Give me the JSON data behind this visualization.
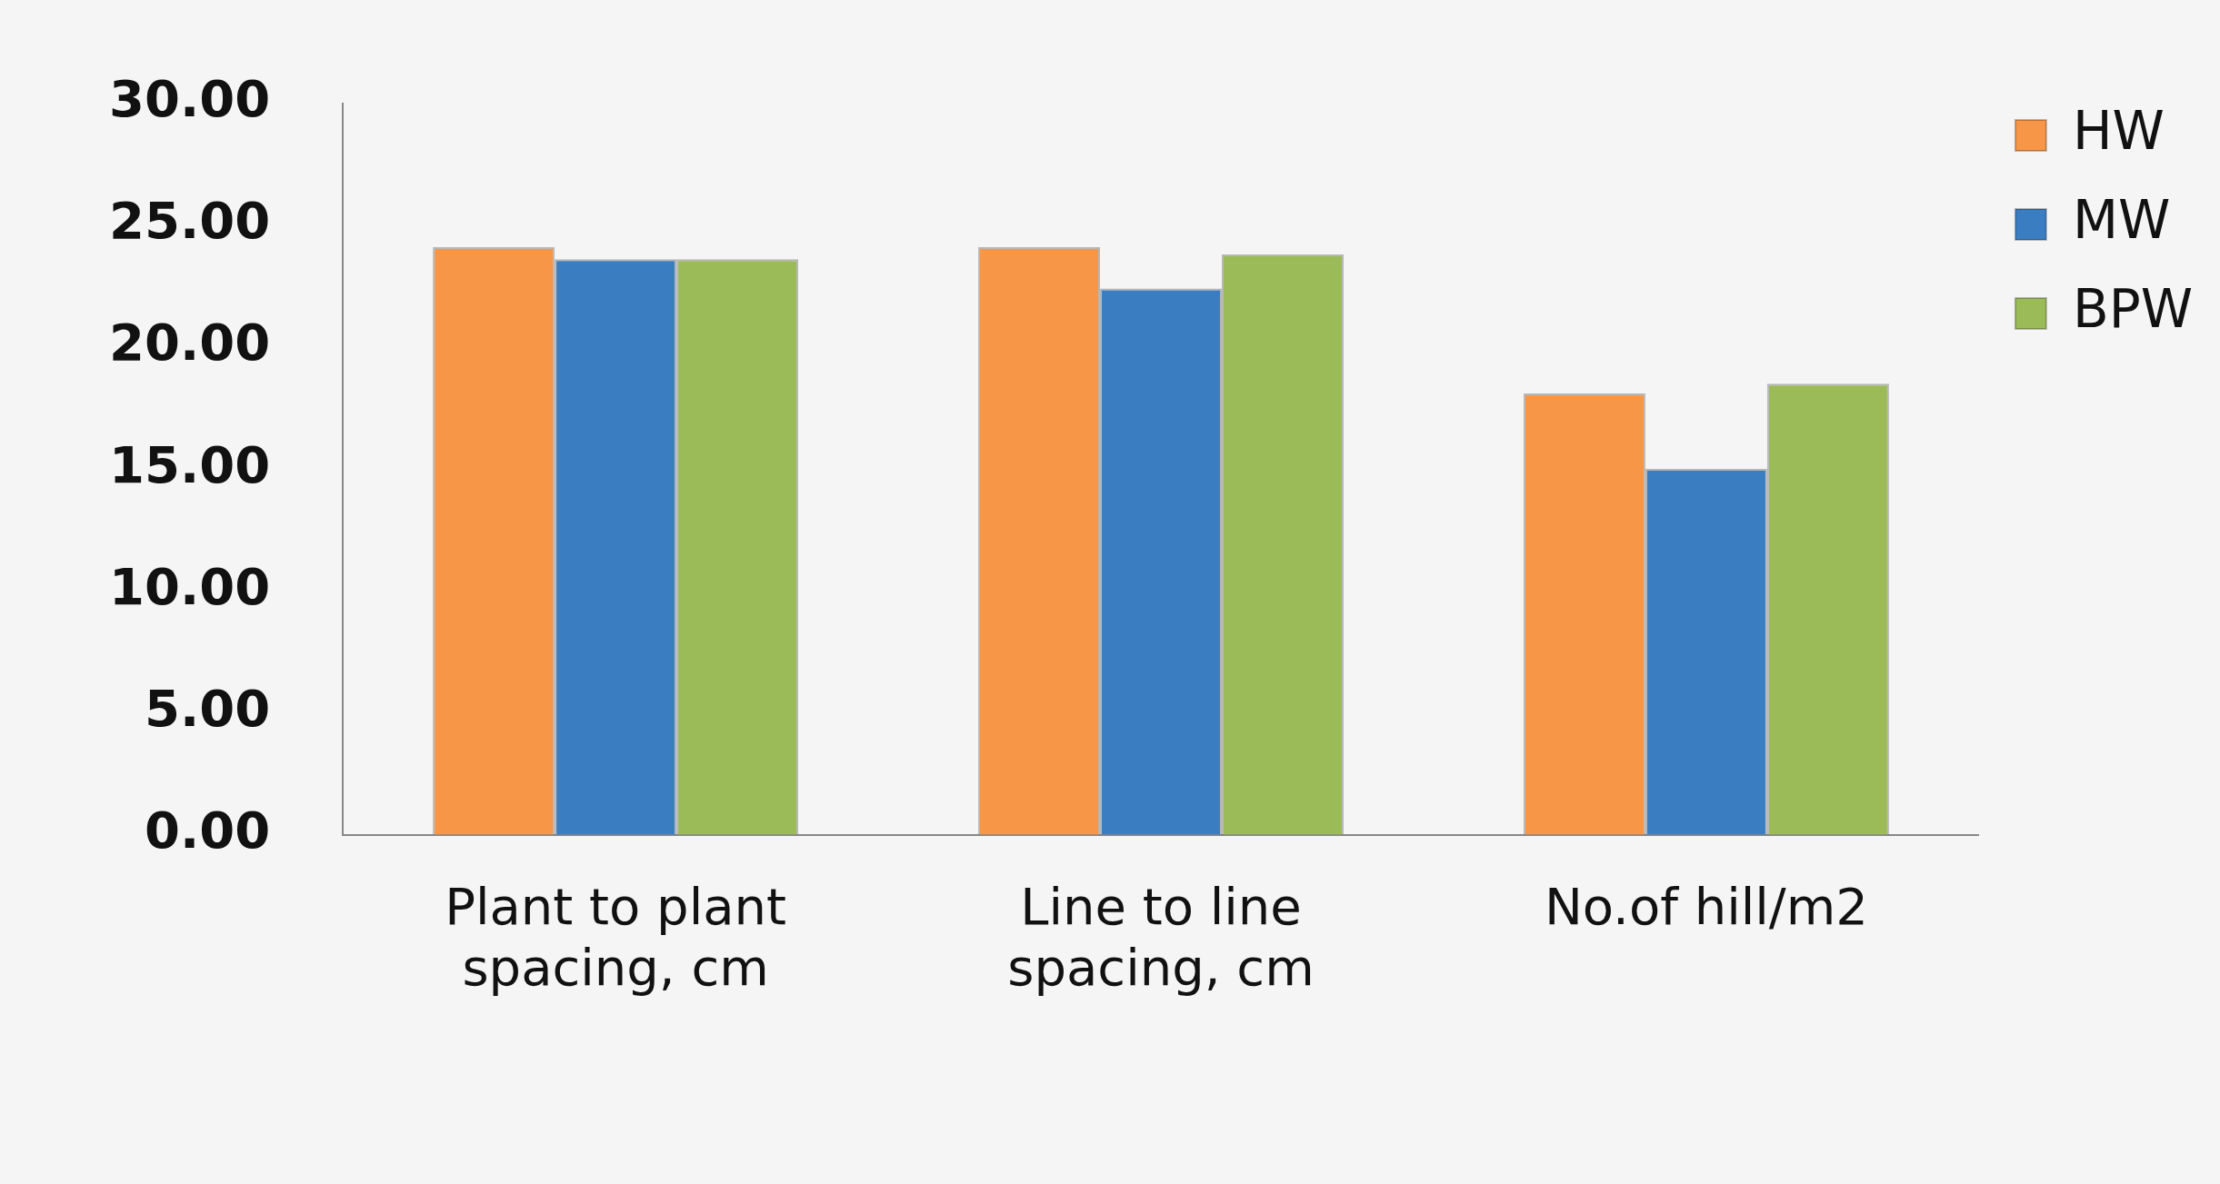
{
  "chart_data": {
    "type": "bar",
    "categories": [
      "Plant to plant spacing, cm",
      "Line to line spacing, cm",
      "No.of hill/m2"
    ],
    "series": [
      {
        "name": "HW",
        "color": "#f79646",
        "values": [
          24.1,
          24.1,
          18.1
        ]
      },
      {
        "name": "MW",
        "color": "#3a7dc0",
        "values": [
          23.6,
          22.4,
          15.0
        ]
      },
      {
        "name": "BPW",
        "color": "#9bbb59",
        "values": [
          23.6,
          23.8,
          18.5
        ]
      }
    ],
    "ylim": [
      0,
      30
    ],
    "yticks": [
      {
        "value": 0,
        "label": "0.00"
      },
      {
        "value": 5,
        "label": "5.00"
      },
      {
        "value": 10,
        "label": "10.00"
      },
      {
        "value": 15,
        "label": "15.00"
      },
      {
        "value": 20,
        "label": "20.00"
      },
      {
        "value": 25,
        "label": "25.00"
      },
      {
        "value": 30,
        "label": "30.00"
      }
    ],
    "grid": false,
    "legend": "top right"
  }
}
